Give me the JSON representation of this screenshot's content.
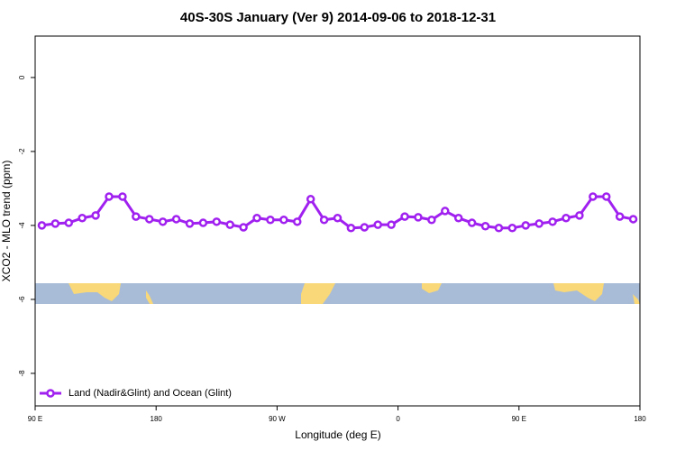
{
  "chart_data": {
    "type": "line",
    "title": "40S-30S January (Ver 9)   2014-09-06 to 2018-12-31",
    "x_label": "Longitude (deg E)",
    "y_label": "XCO2 - MLO trend (ppm)",
    "x": [
      95,
      105,
      115,
      125,
      135,
      145,
      155,
      165,
      175,
      185,
      195,
      205,
      215,
      225,
      235,
      245,
      255,
      265,
      275,
      285,
      295,
      305,
      315,
      325,
      335,
      345,
      355,
      365,
      375,
      385,
      395,
      405,
      415,
      425,
      435,
      445,
      455,
      465,
      475,
      485,
      495,
      505,
      515,
      525,
      535
    ],
    "series": [
      {
        "name": "Land (Nadir&Glint) and Ocean (Glint)",
        "color": "#a020f0",
        "values": [
          -4.0,
          -3.95,
          -3.93,
          -3.8,
          -3.73,
          -3.22,
          -3.22,
          -3.76,
          -3.83,
          -3.9,
          -3.83,
          -3.95,
          -3.93,
          -3.9,
          -3.98,
          -4.05,
          -3.8,
          -3.85,
          -3.85,
          -3.9,
          -3.29,
          -3.85,
          -3.8,
          -4.07,
          -4.05,
          -3.98,
          -3.98,
          -3.76,
          -3.78,
          -3.85,
          -3.61,
          -3.8,
          -3.93,
          -4.02,
          -4.07,
          -4.07,
          -4.0,
          -3.95,
          -3.9,
          -3.8,
          -3.73,
          -3.22,
          -3.22,
          -3.76,
          -3.83
        ]
      }
    ],
    "xlim": [
      90,
      540
    ],
    "xticks": [
      {
        "value": 90,
        "label": "90 E"
      },
      180,
      {
        "value": 270,
        "label": "90 W"
      },
      {
        "value": 360,
        "label": "0"
      },
      {
        "value": 450,
        "label": "90 E"
      },
      {
        "value": 540,
        "label": "180"
      }
    ],
    "ylim": [
      -8.88,
      1.12
    ],
    "yticks": [
      0,
      -2,
      -4,
      -6,
      -8
    ],
    "legend": "bottom-left"
  }
}
